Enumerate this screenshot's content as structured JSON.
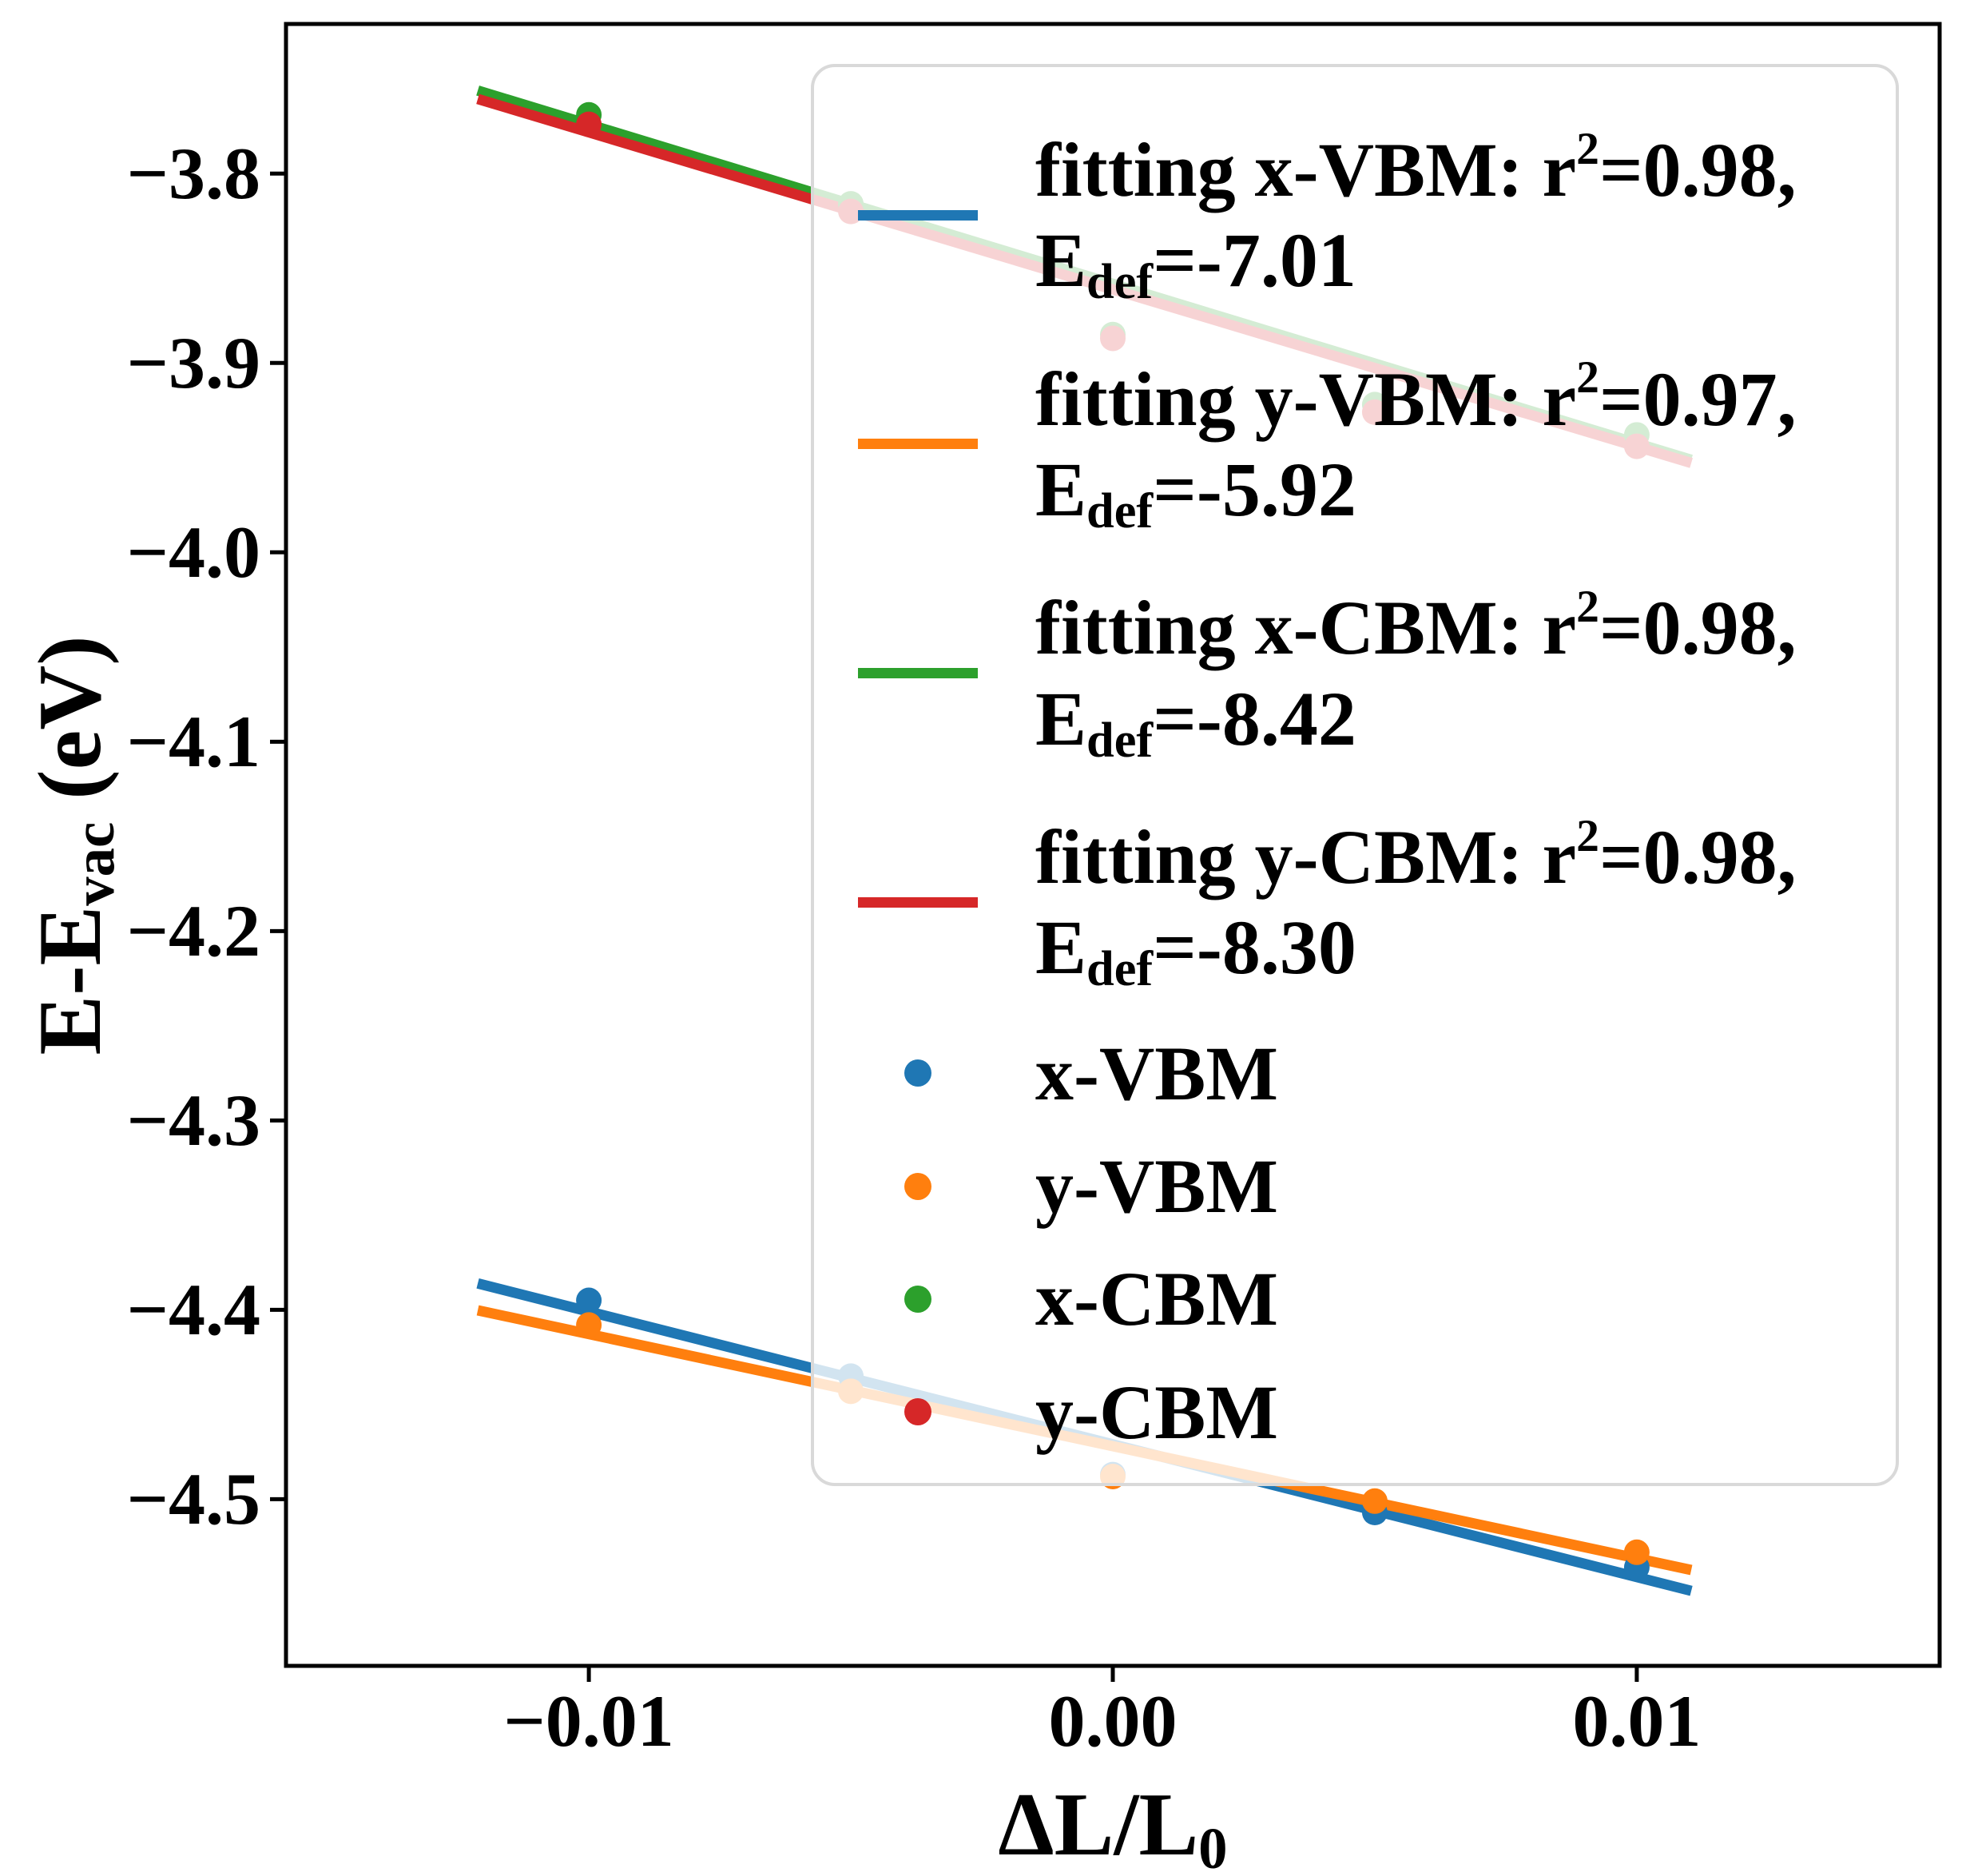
{
  "figure": {
    "background": "#ffffff"
  },
  "axes": {
    "xlabel": {
      "pre": "ΔL/L",
      "sub": "0"
    },
    "ylabel": {
      "pre": "E-E",
      "sub": "vac",
      "post": " (eV)"
    },
    "xticks": [
      {
        "label": "−0.01",
        "value": -0.01
      },
      {
        "label": "0.00",
        "value": 0.0
      },
      {
        "label": "0.01",
        "value": 0.01
      }
    ],
    "yticks": [
      {
        "label": "−3.8",
        "value": -3.8
      },
      {
        "label": "−3.9",
        "value": -3.9
      },
      {
        "label": "−4.0",
        "value": -4.0
      },
      {
        "label": "−4.1",
        "value": -4.1
      },
      {
        "label": "−4.2",
        "value": -4.2
      },
      {
        "label": "−4.3",
        "value": -4.3
      },
      {
        "label": "−4.4",
        "value": -4.4
      },
      {
        "label": "−4.5",
        "value": -4.5
      }
    ]
  },
  "chart_data": {
    "type": "scatter",
    "title": "",
    "xlabel": "ΔL/L0",
    "ylabel": "E-Evac (eV)",
    "xlim": [
      -0.01578,
      0.01578
    ],
    "ylim": [
      -4.588,
      -3.721
    ],
    "grid": false,
    "legend_position": "upper right",
    "x": [
      -0.01,
      -0.005,
      0.0,
      0.005,
      0.01
    ],
    "series": [
      {
        "name": "x-VBM",
        "color": "#1f77b4",
        "values": [
          -4.395,
          -4.435,
          -4.487,
          -4.507,
          -4.536
        ]
      },
      {
        "name": "y-VBM",
        "color": "#ff7f0e",
        "values": [
          -4.408,
          -4.443,
          -4.488,
          -4.501,
          -4.528
        ]
      },
      {
        "name": "x-CBM",
        "color": "#2ca02c",
        "values": [
          -3.769,
          -3.816,
          -3.885,
          -3.922,
          -3.938
        ]
      },
      {
        "name": "y-CBM",
        "color": "#d62728",
        "values": [
          -3.774,
          -3.82,
          -3.887,
          -3.926,
          -3.944
        ]
      }
    ],
    "fit_lines": [
      {
        "name": "fitting x-VBM",
        "color": "#1f77b4",
        "r2": 0.98,
        "E_def": -7.01,
        "intercept": -4.471,
        "x_range": [
          -0.01212,
          0.01104
        ]
      },
      {
        "name": "fitting y-VBM",
        "color": "#ff7f0e",
        "r2": 0.97,
        "E_def": -5.92,
        "intercept": -4.472,
        "x_range": [
          -0.01212,
          0.01104
        ]
      },
      {
        "name": "fitting x-CBM",
        "color": "#2ca02c",
        "r2": 0.98,
        "E_def": -8.42,
        "intercept": -3.8582,
        "x_range": [
          -0.01212,
          0.01104
        ]
      },
      {
        "name": "fitting y-CBM",
        "color": "#d62728",
        "r2": 0.98,
        "E_def": -8.3,
        "intercept": -3.8612,
        "x_range": [
          -0.01212,
          0.01104
        ]
      }
    ]
  },
  "legend": {
    "fits": [
      {
        "pre": "fitting x-VBM: r",
        "sup": "2",
        "mid": "=0.98,",
        "e_base": "E",
        "e_sub": "def",
        "e_rest": "=-7.01",
        "color": "#1f77b4"
      },
      {
        "pre": "fitting y-VBM: r",
        "sup": "2",
        "mid": "=0.97,",
        "e_base": "E",
        "e_sub": "def",
        "e_rest": "=-5.92",
        "color": "#ff7f0e"
      },
      {
        "pre": "fitting x-CBM: r",
        "sup": "2",
        "mid": "=0.98,",
        "e_base": "E",
        "e_sub": "def",
        "e_rest": "=-8.42",
        "color": "#2ca02c"
      },
      {
        "pre": "fitting y-CBM: r",
        "sup": "2",
        "mid": "=0.98,",
        "e_base": "E",
        "e_sub": "def",
        "e_rest": "=-8.30",
        "color": "#d62728"
      }
    ],
    "markers": [
      {
        "label": "x-VBM",
        "color": "#1f77b4"
      },
      {
        "label": "y-VBM",
        "color": "#ff7f0e"
      },
      {
        "label": "x-CBM",
        "color": "#2ca02c"
      },
      {
        "label": "y-CBM",
        "color": "#d62728"
      }
    ]
  }
}
